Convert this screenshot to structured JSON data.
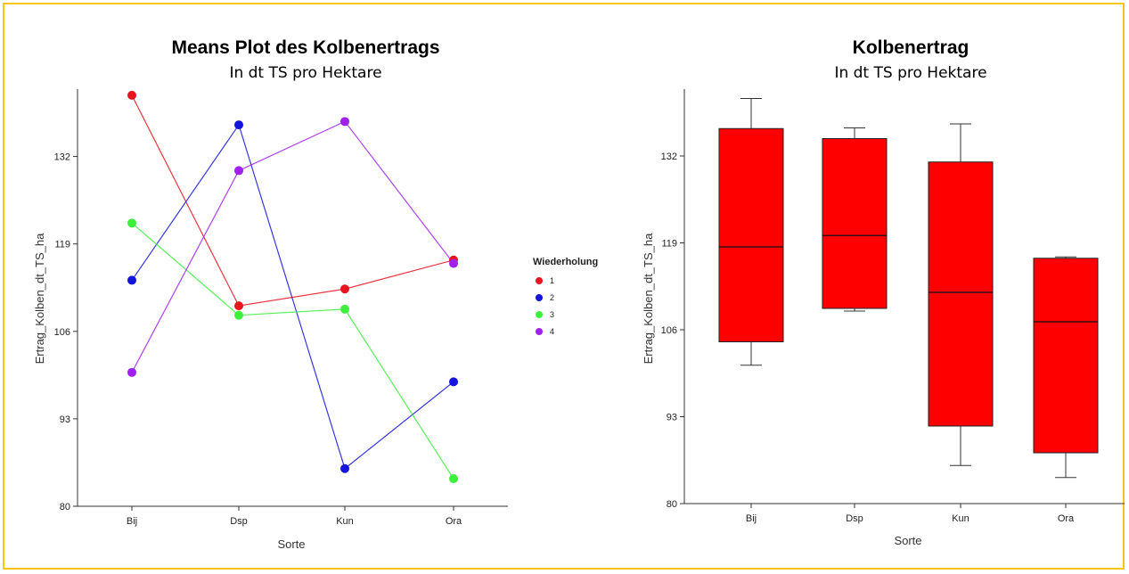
{
  "chart_data": [
    {
      "type": "line",
      "title": "Means Plot des Kolbenertrags",
      "subtitle": "In dt TS pro Hektare",
      "xlabel": "Sorte",
      "ylabel": "Ertrag_Kolben_dt_TS_ha",
      "categories": [
        "Bij",
        "Dsp",
        "Kun",
        "Ora"
      ],
      "yticks": [
        80,
        93,
        106,
        119,
        132
      ],
      "ylim": [
        80,
        144
      ],
      "legend_title": "Wiederholung",
      "legend_position": "right",
      "series": [
        {
          "name": "1",
          "color": "#e8141e",
          "values": [
            141.1,
            109.8,
            112.3,
            116.6
          ]
        },
        {
          "name": "2",
          "color": "#1414dc",
          "values": [
            113.6,
            136.7,
            85.6,
            98.5
          ]
        },
        {
          "name": "3",
          "color": "#3cf03c",
          "values": [
            122.1,
            108.4,
            109.3,
            84.1
          ]
        },
        {
          "name": "4",
          "color": "#a020f0",
          "values": [
            99.9,
            129.9,
            137.2,
            116.1
          ]
        }
      ]
    },
    {
      "type": "box",
      "title": "Kolbenertrag",
      "subtitle": "In dt TS pro Hektare",
      "xlabel": "Sorte",
      "ylabel": "Ertrag_Kolben_dt_TS_ha",
      "categories": [
        "Bij",
        "Dsp",
        "Kun",
        "Ora"
      ],
      "yticks": [
        80,
        93,
        106,
        119,
        132
      ],
      "ylim": [
        80,
        144
      ],
      "box_color": "#ff0000",
      "boxes": [
        {
          "min": 100.7,
          "q1": 104.2,
          "median": 118.4,
          "q3": 136.1,
          "max": 140.6
        },
        {
          "min": 108.8,
          "q1": 109.2,
          "median": 120.1,
          "q3": 134.6,
          "max": 136.2
        },
        {
          "min": 85.7,
          "q1": 91.6,
          "median": 111.6,
          "q3": 131.1,
          "max": 136.8
        },
        {
          "min": 83.9,
          "q1": 87.6,
          "median": 107.2,
          "q3": 116.7,
          "max": 116.9
        }
      ]
    }
  ]
}
